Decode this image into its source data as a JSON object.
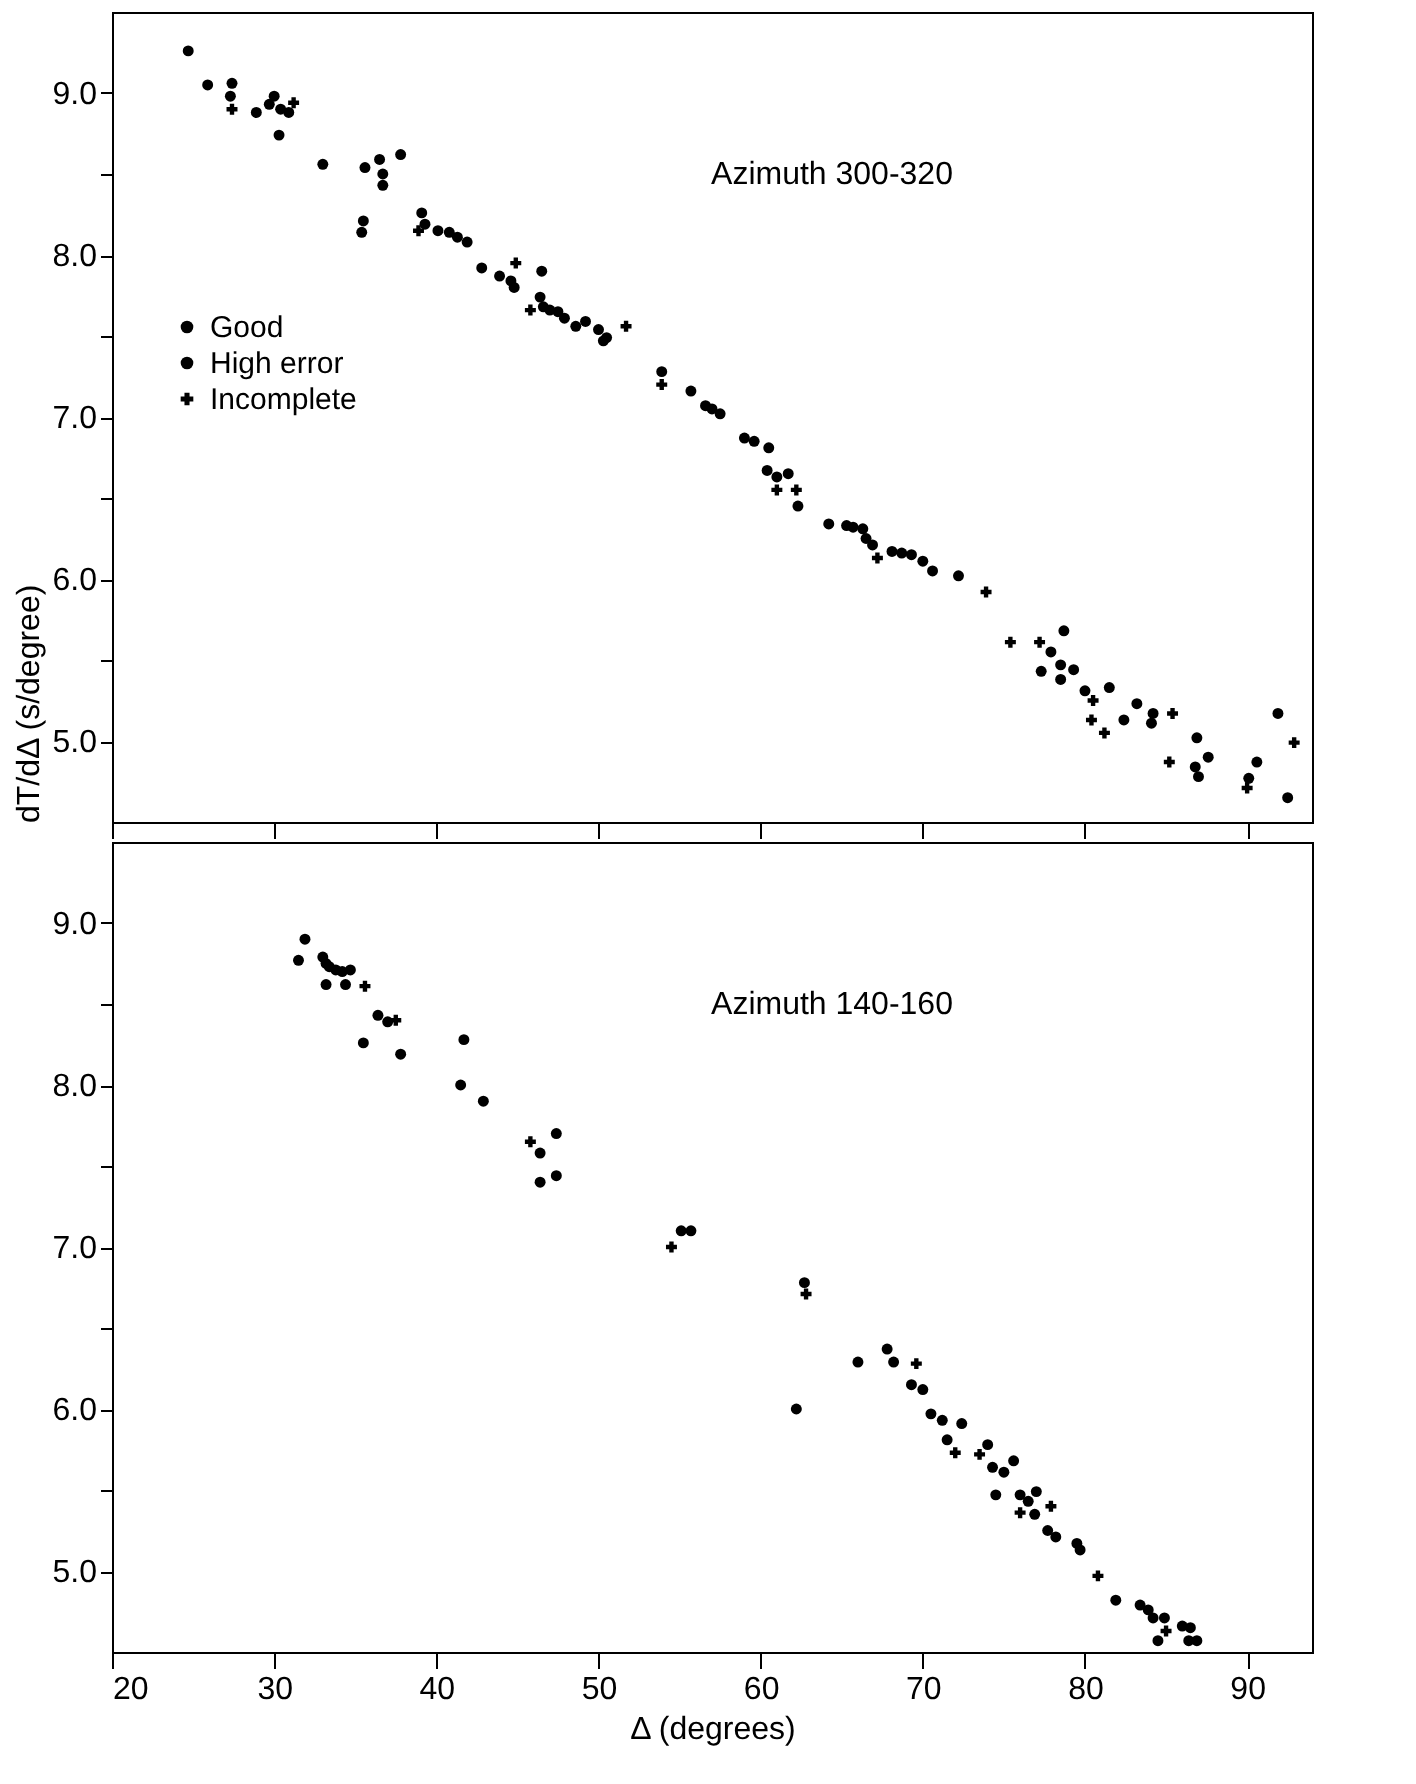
{
  "chart_data": [
    {
      "type": "scatter",
      "title": "Azimuth 300-320",
      "ylabel": "dT/dΔ (s/degree)",
      "xlim": [
        20,
        94
      ],
      "ylim": [
        4.5,
        9.5
      ],
      "xticks": [
        20,
        30,
        40,
        50,
        60,
        70,
        80,
        90
      ],
      "yticks": [
        {
          "value": 5,
          "label": "5.0"
        },
        {
          "value": 5.5,
          "label": null
        },
        {
          "value": 6,
          "label": "6.0"
        },
        {
          "value": 6.5,
          "label": null
        },
        {
          "value": 7,
          "label": "7.0"
        },
        {
          "value": 7.5,
          "label": null
        },
        {
          "value": 8,
          "label": "8.0"
        },
        {
          "value": 8.5,
          "label": null
        },
        {
          "value": 9,
          "label": "9.0"
        }
      ],
      "tick_labels": "y",
      "grid": false,
      "legend": "left",
      "series": [
        {
          "name": "Good",
          "color": "#000000",
          "marker": "circle",
          "x": [
            24.7,
            25.9,
            27.4,
            27.3,
            28.9,
            29.7,
            30.0,
            30.4,
            30.9,
            30.3,
            35.6,
            36.5,
            36.7,
            36.7,
            35.5,
            35.4,
            39.1,
            39.3,
            40.1,
            40.8,
            41.3,
            42.8,
            43.9,
            44.6,
            44.8,
            46.4,
            46.6,
            47.5,
            48.6,
            49.2,
            50.0,
            55.7,
            59.0,
            60.5,
            61.0,
            64.2,
            65.3,
            66.3,
            66.9,
            68.7,
            70.0,
            72.2,
            77.9,
            79.3,
            80.0,
            83.2,
            84.1,
            87.6,
            90.6
          ],
          "values": [
            9.26,
            9.05,
            9.06,
            8.98,
            8.88,
            8.93,
            8.98,
            8.9,
            8.88,
            8.74,
            8.54,
            8.59,
            8.5,
            8.43,
            8.21,
            8.14,
            8.26,
            8.19,
            8.15,
            8.14,
            8.11,
            7.92,
            7.87,
            7.84,
            7.8,
            7.74,
            7.68,
            7.65,
            7.56,
            7.59,
            7.54,
            7.16,
            6.87,
            6.81,
            6.63,
            6.34,
            6.33,
            6.31,
            6.21,
            6.16,
            6.11,
            6.02,
            5.55,
            5.44,
            5.31,
            5.23,
            5.11,
            4.9,
            4.87
          ]
        },
        {
          "name": "High error",
          "color": "#000000",
          "marker": "circle",
          "x": [
            33.0,
            37.8,
            41.9,
            46.5,
            47.0,
            47.9,
            50.5,
            50.3,
            53.9,
            56.6,
            57.0,
            57.5,
            59.6,
            60.4,
            61.7,
            62.3,
            65.7,
            66.5,
            68.1,
            69.3,
            70.6,
            78.7,
            77.3,
            78.5,
            78.5,
            81.5,
            82.4,
            84.2,
            86.9,
            86.8,
            87.0,
            90.1,
            91.9,
            92.5
          ],
          "values": [
            8.56,
            8.62,
            8.08,
            7.9,
            7.66,
            7.61,
            7.49,
            7.47,
            7.28,
            7.07,
            7.05,
            7.02,
            6.85,
            6.67,
            6.65,
            6.45,
            6.32,
            6.25,
            6.17,
            6.15,
            6.05,
            5.68,
            5.43,
            5.47,
            5.38,
            5.33,
            5.13,
            5.17,
            5.02,
            4.84,
            4.78,
            4.77,
            5.17,
            4.65
          ]
        },
        {
          "name": "Incomplete",
          "color": "#000000",
          "marker": "cross",
          "x": [
            27.4,
            31.2,
            38.9,
            44.9,
            45.8,
            51.7,
            53.9,
            61.0,
            62.2,
            67.2,
            73.9,
            75.4,
            77.2,
            80.5,
            80.4,
            81.2,
            85.4,
            85.2,
            90.0,
            92.9
          ],
          "values": [
            8.9,
            8.94,
            8.15,
            7.95,
            7.66,
            7.56,
            7.2,
            6.55,
            6.55,
            6.13,
            5.92,
            5.61,
            5.61,
            5.25,
            5.13,
            5.05,
            5.17,
            4.87,
            4.71,
            4.99
          ]
        }
      ]
    },
    {
      "type": "scatter",
      "title": "Azimuth 140-160",
      "xlabel": "Δ (degrees)",
      "xlim": [
        20,
        94
      ],
      "ylim": [
        4.5,
        9.5
      ],
      "xticks": [
        20,
        30,
        40,
        50,
        60,
        70,
        80,
        90
      ],
      "yticks": [
        {
          "value": 5,
          "label": "5.0"
        },
        {
          "value": 5.5,
          "label": null
        },
        {
          "value": 6,
          "label": "6.0"
        },
        {
          "value": 6.5,
          "label": null
        },
        {
          "value": 7,
          "label": "7.0"
        },
        {
          "value": 7.5,
          "label": null
        },
        {
          "value": 8,
          "label": "8.0"
        },
        {
          "value": 8.5,
          "label": null
        },
        {
          "value": 9,
          "label": "9.0"
        }
      ],
      "grid": false,
      "legend": "left",
      "series": [
        {
          "name": "Good",
          "color": "#000000",
          "marker": "circle",
          "x": [
            31.9,
            33.2,
            33.4,
            33.8,
            34.2,
            34.7,
            33.2,
            34.4,
            36.4,
            37.0,
            46.4,
            55.1,
            62.7,
            68.2,
            70.0,
            71.2,
            71.5,
            74.0,
            75.0,
            76.5,
            76.9,
            78.2,
            79.7,
            83.9,
            84.2,
            84.5,
            86.5,
            86.9
          ],
          "values": [
            8.9,
            8.75,
            8.73,
            8.71,
            8.7,
            8.71,
            8.62,
            8.62,
            8.43,
            8.39,
            7.4,
            7.1,
            6.78,
            6.29,
            6.12,
            5.93,
            5.81,
            5.78,
            5.61,
            5.43,
            5.35,
            5.21,
            5.13,
            4.76,
            4.71,
            4.57,
            4.65,
            4.57
          ]
        },
        {
          "name": "High error",
          "color": "#000000",
          "marker": "circle",
          "x": [
            31.5,
            33.0,
            35.5,
            37.8,
            41.7,
            41.5,
            42.9,
            46.4,
            47.4,
            47.4,
            55.7,
            62.2,
            66.0,
            67.8,
            69.3,
            70.5,
            72.4,
            74.3,
            75.6,
            74.5,
            76.0,
            77.0,
            77.7,
            79.5,
            81.9,
            83.4,
            84.9,
            86.0,
            86.4
          ],
          "values": [
            8.77,
            8.79,
            8.26,
            8.19,
            8.28,
            8.0,
            7.9,
            7.58,
            7.7,
            7.44,
            7.1,
            6.0,
            6.29,
            6.37,
            6.15,
            5.97,
            5.91,
            5.64,
            5.68,
            5.47,
            5.47,
            5.49,
            5.25,
            5.17,
            4.82,
            4.79,
            4.71,
            4.66,
            4.57
          ]
        },
        {
          "name": "Incomplete",
          "color": "#000000",
          "marker": "cross",
          "x": [
            35.6,
            37.5,
            45.8,
            54.5,
            62.8,
            69.6,
            72.0,
            73.5,
            76.0,
            77.9,
            80.8,
            85.0
          ],
          "values": [
            8.61,
            8.4,
            7.65,
            7.0,
            6.71,
            6.28,
            5.73,
            5.72,
            5.36,
            5.4,
            4.97,
            4.63
          ]
        }
      ]
    }
  ]
}
